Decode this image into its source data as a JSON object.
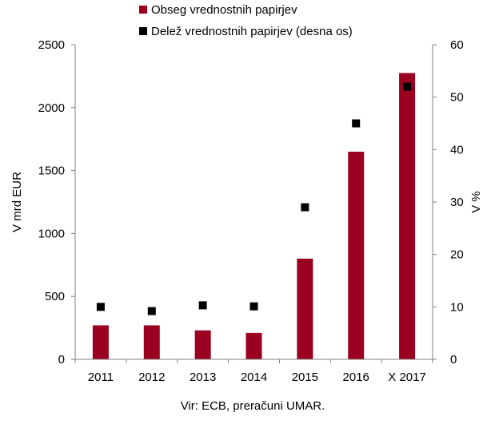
{
  "chart_data": {
    "type": "bar",
    "categories": [
      "2011",
      "2012",
      "2013",
      "2014",
      "2015",
      "2016",
      "X 2017"
    ],
    "series": [
      {
        "name": "Obseg vrednostnih papirjev",
        "type": "bar",
        "axis": "left",
        "color": "#9B0020",
        "values": [
          270,
          270,
          230,
          210,
          800,
          1650,
          2275
        ]
      },
      {
        "name": "Delež vrednostnih papirjev (desna os)",
        "type": "scatter",
        "axis": "right",
        "color": "#000000",
        "values": [
          10,
          9.2,
          10.3,
          10.1,
          29,
          45,
          52
        ]
      }
    ],
    "ylabel": "V mrd EUR",
    "ylabel_right": "V %",
    "ylim": [
      0,
      2500
    ],
    "ylim_right": [
      0,
      60
    ],
    "yticks": [
      "0",
      "500",
      "1000",
      "1500",
      "2000",
      "2500"
    ],
    "yticks_right": [
      "0",
      "10",
      "20",
      "30",
      "40",
      "50",
      "60"
    ],
    "grid": false,
    "legend_position": "top",
    "source": "Vir: ECB, preračuni UMAR."
  }
}
